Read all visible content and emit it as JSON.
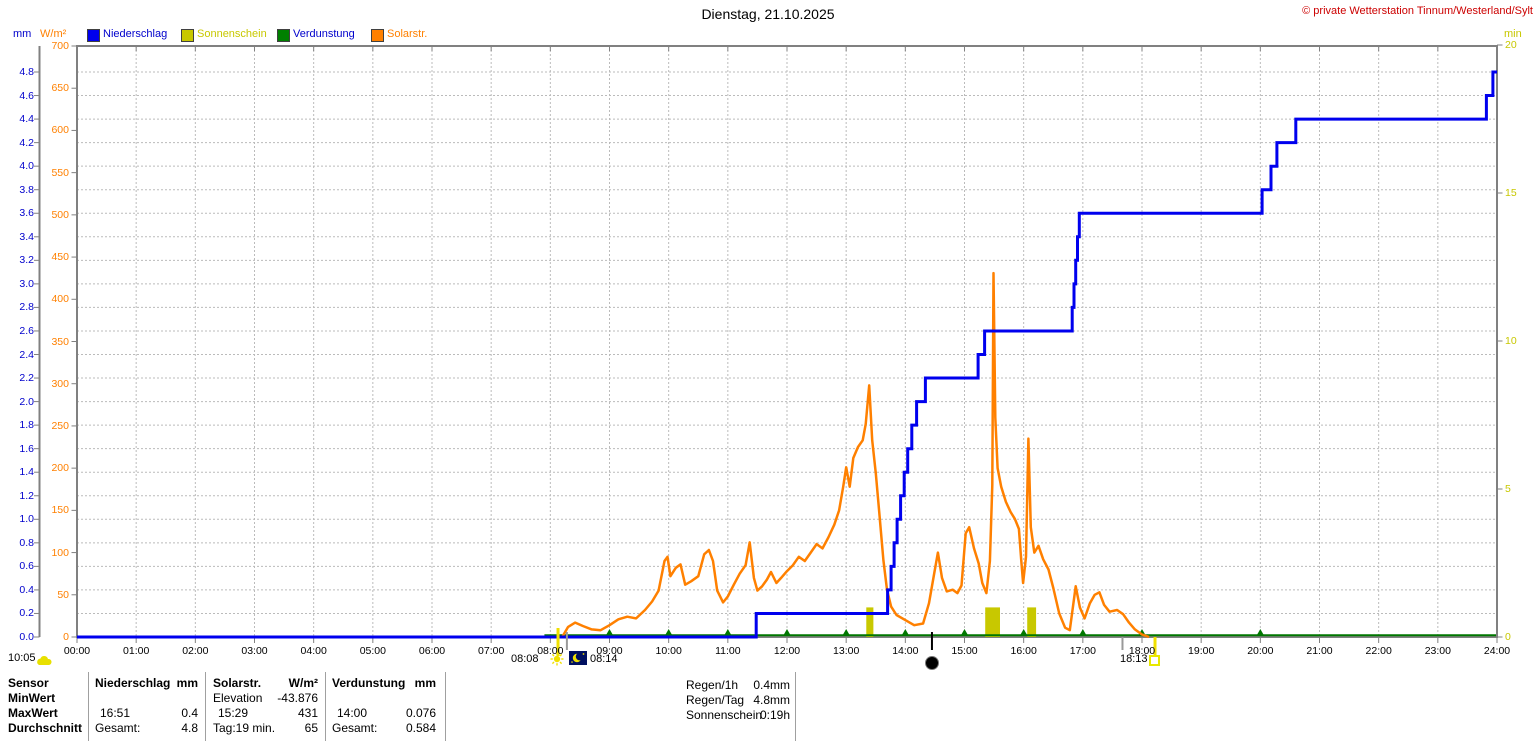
{
  "window": {
    "title": "Dienstag, 21.10.2025",
    "copyright": "© private Wetterstation Tinnum/Westerland/Sylt"
  },
  "legend": [
    {
      "label": "Niederschlag",
      "swatch_color": "#0000ee",
      "text_color": "#0000cc"
    },
    {
      "label": "Sonnenschein",
      "swatch_color": "#c8c800",
      "text_color": "#c8c800"
    },
    {
      "label": "Verdunstung",
      "swatch_color": "#008000",
      "text_color": "#0000cc"
    },
    {
      "label": "Solarstr.",
      "swatch_color": "#ff8000",
      "text_color": "#ff8000"
    }
  ],
  "axes": {
    "mm": {
      "title": "mm",
      "min": 0,
      "max": 4.8,
      "step": 0.2,
      "color": "#0000cc"
    },
    "wm2": {
      "title": "W/m²",
      "min": 0,
      "max": 700,
      "step": 50,
      "color": "#ff8000"
    },
    "min": {
      "title": "min",
      "min": 0,
      "max": 20,
      "step": 5,
      "color": "#c8c800"
    },
    "x": {
      "labels": [
        "00:00",
        "01:00",
        "02:00",
        "03:00",
        "04:00",
        "05:00",
        "06:00",
        "07:00",
        "08:00",
        "09:00",
        "10:00",
        "11:00",
        "12:00",
        "13:00",
        "14:00",
        "15:00",
        "16:00",
        "17:00",
        "18:00",
        "19:00",
        "20:00",
        "21:00",
        "22:00",
        "23:00",
        "24:00"
      ]
    }
  },
  "chart_data": {
    "type": "line",
    "title": "Dienstag, 21.10.2025",
    "x_unit": "hour_of_day",
    "x_range": [
      0,
      24
    ],
    "grid": {
      "vertical_every_hours": 1,
      "horizontal_every_mm": 0.2,
      "style": "dashed"
    },
    "y_axes": [
      {
        "id": "mm",
        "label": "mm",
        "range": [
          0,
          4.8
        ],
        "side": "left"
      },
      {
        "id": "wm2",
        "label": "W/m²",
        "range": [
          0,
          700
        ],
        "side": "left"
      },
      {
        "id": "min",
        "label": "min",
        "range": [
          0,
          20
        ],
        "side": "right"
      }
    ],
    "series": [
      {
        "name": "Niederschlag",
        "type": "step",
        "axis": "mm",
        "unit": "mm",
        "color": "#0000ee",
        "points": [
          [
            0,
            0
          ],
          [
            11.48,
            0.2
          ],
          [
            13.7,
            0.4
          ],
          [
            13.76,
            0.6
          ],
          [
            13.81,
            0.8
          ],
          [
            13.86,
            1.0
          ],
          [
            13.92,
            1.2
          ],
          [
            13.98,
            1.4
          ],
          [
            14.04,
            1.6
          ],
          [
            14.11,
            1.8
          ],
          [
            14.19,
            2.0
          ],
          [
            14.34,
            2.2
          ],
          [
            15.23,
            2.4
          ],
          [
            15.34,
            2.6
          ],
          [
            16.82,
            2.8
          ],
          [
            16.85,
            3.0
          ],
          [
            16.88,
            3.2
          ],
          [
            16.91,
            3.4
          ],
          [
            16.94,
            3.6
          ],
          [
            20.03,
            3.8
          ],
          [
            20.18,
            4.0
          ],
          [
            20.28,
            4.2
          ],
          [
            20.6,
            4.4
          ],
          [
            23.82,
            4.6
          ],
          [
            23.93,
            4.8
          ]
        ]
      },
      {
        "name": "Sonnenschein",
        "type": "bar",
        "axis": "min",
        "unit": "min",
        "color": "#c8c800",
        "bars": [
          {
            "start": 13.34,
            "end": 13.46,
            "value": 1.0
          },
          {
            "start": 15.35,
            "end": 15.6,
            "value": 1.0
          },
          {
            "start": 16.06,
            "end": 16.21,
            "value": 1.0
          }
        ]
      },
      {
        "name": "Verdunstung",
        "type": "line",
        "axis": "mm",
        "unit": "mm",
        "color": "#007700",
        "baseline": 0.015,
        "span": [
          7.9,
          24
        ],
        "marker_hours": [
          9,
          10,
          11,
          12,
          13,
          14,
          15,
          16,
          17,
          18,
          20
        ]
      },
      {
        "name": "Solarstr.",
        "type": "line",
        "axis": "wm2",
        "unit": "W/m²",
        "color": "#ff8000",
        "points": [
          [
            8.2,
            0
          ],
          [
            8.3,
            12
          ],
          [
            8.42,
            17
          ],
          [
            8.55,
            13
          ],
          [
            8.7,
            9
          ],
          [
            8.85,
            8
          ],
          [
            9.0,
            14
          ],
          [
            9.15,
            21
          ],
          [
            9.3,
            24
          ],
          [
            9.45,
            22
          ],
          [
            9.6,
            32
          ],
          [
            9.72,
            42
          ],
          [
            9.83,
            55
          ],
          [
            9.93,
            90
          ],
          [
            9.98,
            95
          ],
          [
            10.03,
            72
          ],
          [
            10.12,
            82
          ],
          [
            10.2,
            86
          ],
          [
            10.28,
            62
          ],
          [
            10.38,
            66
          ],
          [
            10.5,
            72
          ],
          [
            10.6,
            98
          ],
          [
            10.68,
            103
          ],
          [
            10.75,
            90
          ],
          [
            10.82,
            55
          ],
          [
            10.92,
            41
          ],
          [
            11.0,
            48
          ],
          [
            11.1,
            62
          ],
          [
            11.2,
            75
          ],
          [
            11.3,
            85
          ],
          [
            11.37,
            112
          ],
          [
            11.44,
            70
          ],
          [
            11.5,
            55
          ],
          [
            11.58,
            60
          ],
          [
            11.66,
            68
          ],
          [
            11.73,
            77
          ],
          [
            11.82,
            64
          ],
          [
            11.9,
            70
          ],
          [
            12.0,
            78
          ],
          [
            12.1,
            85
          ],
          [
            12.2,
            95
          ],
          [
            12.3,
            90
          ],
          [
            12.4,
            100
          ],
          [
            12.5,
            110
          ],
          [
            12.6,
            105
          ],
          [
            12.7,
            118
          ],
          [
            12.8,
            133
          ],
          [
            12.88,
            150
          ],
          [
            12.95,
            178
          ],
          [
            13.0,
            201
          ],
          [
            13.06,
            178
          ],
          [
            13.12,
            212
          ],
          [
            13.2,
            225
          ],
          [
            13.28,
            233
          ],
          [
            13.33,
            252
          ],
          [
            13.39,
            298
          ],
          [
            13.44,
            233
          ],
          [
            13.5,
            194
          ],
          [
            13.56,
            147
          ],
          [
            13.63,
            91
          ],
          [
            13.69,
            56
          ],
          [
            13.76,
            36
          ],
          [
            13.85,
            26
          ],
          [
            14.0,
            20
          ],
          [
            14.15,
            14
          ],
          [
            14.3,
            16
          ],
          [
            14.4,
            40
          ],
          [
            14.5,
            80
          ],
          [
            14.55,
            100
          ],
          [
            14.62,
            70
          ],
          [
            14.7,
            54
          ],
          [
            14.8,
            56
          ],
          [
            14.88,
            52
          ],
          [
            14.95,
            61
          ],
          [
            15.02,
            123
          ],
          [
            15.08,
            130
          ],
          [
            15.16,
            105
          ],
          [
            15.24,
            87
          ],
          [
            15.3,
            64
          ],
          [
            15.37,
            52
          ],
          [
            15.43,
            90
          ],
          [
            15.47,
            180
          ],
          [
            15.49,
            431
          ],
          [
            15.52,
            260
          ],
          [
            15.56,
            200
          ],
          [
            15.62,
            178
          ],
          [
            15.7,
            160
          ],
          [
            15.78,
            148
          ],
          [
            15.85,
            140
          ],
          [
            15.92,
            128
          ],
          [
            15.96,
            90
          ],
          [
            15.99,
            64
          ],
          [
            16.04,
            95
          ],
          [
            16.08,
            235
          ],
          [
            16.12,
            130
          ],
          [
            16.18,
            100
          ],
          [
            16.25,
            108
          ],
          [
            16.33,
            92
          ],
          [
            16.42,
            80
          ],
          [
            16.5,
            58
          ],
          [
            16.6,
            28
          ],
          [
            16.7,
            11
          ],
          [
            16.78,
            8
          ],
          [
            16.88,
            60
          ],
          [
            16.95,
            35
          ],
          [
            17.03,
            22
          ],
          [
            17.12,
            40
          ],
          [
            17.2,
            50
          ],
          [
            17.28,
            53
          ],
          [
            17.36,
            38
          ],
          [
            17.45,
            30
          ],
          [
            17.58,
            32
          ],
          [
            17.68,
            27
          ],
          [
            17.78,
            17
          ],
          [
            17.88,
            9
          ],
          [
            18.0,
            3
          ],
          [
            18.12,
            0
          ]
        ]
      }
    ]
  },
  "annotations": {
    "obs": {
      "time": "10:05",
      "icon": "cloud"
    },
    "sunrise": {
      "time": "08:08",
      "hour": 8.13
    },
    "moonrise": {
      "time": "08:14",
      "hour": 8.28
    },
    "moon_phase": {
      "hour": 14.45,
      "phase": "new-moon"
    },
    "sunset": {
      "time": "18:13",
      "hour": 18.22
    },
    "extra_tick_hour": 17.67
  },
  "table": {
    "row_labels": {
      "header": "Sensor",
      "min": "MinWert",
      "max": "MaxWert",
      "avg": "Durchschnitt"
    },
    "niederschlag": {
      "header": "Niederschlag",
      "unit": "mm",
      "max_time": "16:51",
      "max_value": "0.4",
      "sum_label": "Gesamt:",
      "sum_value": "4.8"
    },
    "solarstr": {
      "header": "Solarstr.",
      "unit": "W/m²",
      "elevation_label": "Elevation",
      "elevation_value": "-43.876",
      "max_time": "15:29",
      "max_value": "431",
      "day_label": "Tag:19 min.",
      "day_value": "65"
    },
    "verdunstung": {
      "header": "Verdunstung",
      "unit": "mm",
      "max_time": "14:00",
      "max_value": "0.076",
      "sum_label": "Gesamt:",
      "sum_value": "0.584"
    }
  },
  "summary": {
    "regen_1h_label": "Regen/1h",
    "regen_1h_value": "0.4mm",
    "regen_tag_label": "Regen/Tag",
    "regen_tag_value": "4.8mm",
    "sonnenschein_label": "Sonnenschein",
    "sonnenschein_value": "0:19h"
  },
  "colors": {
    "rain": "#0000ee",
    "sunshine": "#c8c800",
    "evaporation": "#007700",
    "solar": "#ff8000",
    "grid": "#bbbbbb",
    "border": "#808080",
    "copyright": "#cc0000"
  }
}
